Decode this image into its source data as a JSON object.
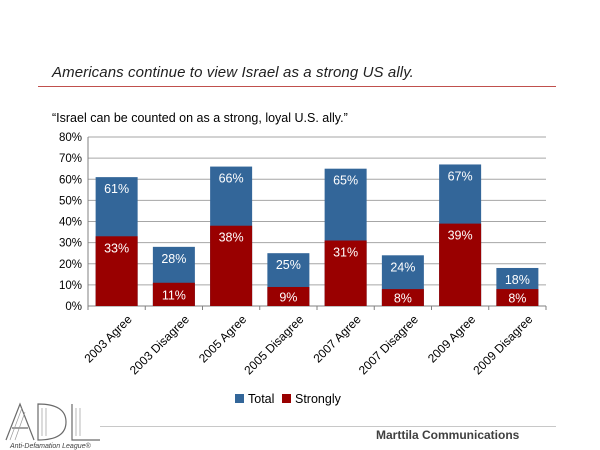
{
  "slide": {
    "title": "Americans continue to view Israel as a strong US ally.",
    "footer_company": "Marttila Communications",
    "logo_text": "ADL",
    "logo_subtext": "Anti-Defamation League®"
  },
  "colors": {
    "total": "#336699",
    "strongly": "#990000",
    "title_rule": "#c0504d"
  },
  "chart_data": {
    "type": "bar",
    "stacking": "overlapping",
    "title": "“Israel can be counted on as a strong, loyal U.S. ally.”",
    "categories": [
      "2003 Agree",
      "2003 Disagree",
      "2005 Agree",
      "2005 Disagree",
      "2007 Agree",
      "2007 Disagree",
      "2009 Agree",
      "2009 Disagree"
    ],
    "series": [
      {
        "name": "Total",
        "values": [
          61,
          28,
          66,
          25,
          65,
          24,
          67,
          18
        ],
        "labels": [
          "61%",
          "28%",
          "66%",
          "25%",
          "65%",
          "24%",
          "67%",
          "18%"
        ]
      },
      {
        "name": "Strongly",
        "values": [
          33,
          11,
          38,
          9,
          31,
          8,
          39,
          8
        ],
        "labels": [
          "33%",
          "11%",
          "38%",
          "9%",
          "31%",
          "8%",
          "39%",
          "8%"
        ]
      }
    ],
    "ylim": [
      0,
      80
    ],
    "yticks": [
      "0%",
      "10%",
      "20%",
      "30%",
      "40%",
      "50%",
      "60%",
      "70%",
      "80%"
    ],
    "xlabel": "",
    "ylabel": "",
    "grid": true,
    "legend": "bottom"
  }
}
